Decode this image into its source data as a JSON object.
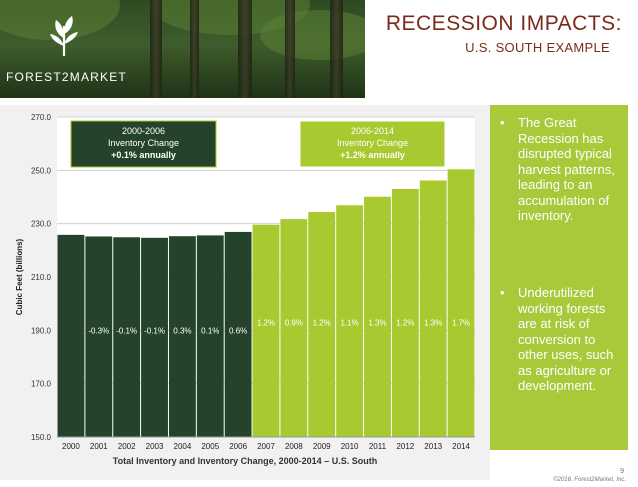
{
  "header": {
    "logo_text": "FOREST2MARKET",
    "title": "RECESSION IMPACTS:",
    "subtitle": "U.S. SOUTH EXAMPLE"
  },
  "chart_data": {
    "type": "bar",
    "categories": [
      "2000",
      "2001",
      "2002",
      "2003",
      "2004",
      "2005",
      "2006",
      "2007",
      "2008",
      "2009",
      "2010",
      "2011",
      "2012",
      "2013",
      "2014"
    ],
    "values": [
      225.8,
      225.2,
      224.9,
      224.7,
      225.3,
      225.6,
      226.9,
      229.6,
      231.7,
      234.4,
      236.9,
      240.1,
      243.0,
      246.2,
      250.4
    ],
    "data_labels": [
      "",
      "-0.3%",
      "-0.1%",
      "-0.1%",
      "0.3%",
      "0.1%",
      "0.6%",
      "1.2%",
      "0.9%",
      "1.2%",
      "1.1%",
      "1.3%",
      "1.2%",
      "1.3%",
      "1.7%"
    ],
    "ylabel": "Cubic Feet (billions)",
    "ylim": [
      150,
      270
    ],
    "yticks": [
      "150.0",
      "170.0",
      "190.0",
      "210.0",
      "230.0",
      "250.0",
      "270.0"
    ],
    "colors": {
      "period1": "#25432a",
      "period2": "#a9c931"
    },
    "annotations": [
      {
        "lines": [
          "2000-2006",
          "Inventory Change",
          "+0.1% annually"
        ]
      },
      {
        "lines": [
          "2006-2014",
          "Inventory Change",
          "+1.2% annually"
        ]
      }
    ],
    "caption": "Total Inventory and Inventory Change, 2000-2014 – U.S. South"
  },
  "bullets": [
    "The Great Recession has disrupted typical harvest patterns, leading to an accumulation of inventory.",
    "Underutilized working forests are at risk of conversion to other uses, such as agriculture or development."
  ],
  "footer": {
    "page": "9",
    "copyright": "©2016, Forest2Market, Inc."
  }
}
